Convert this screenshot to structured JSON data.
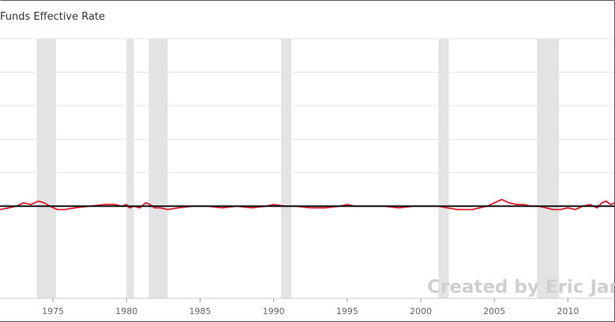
{
  "colors": {
    "background": "#ffffff",
    "gridline": "#e6e6e6",
    "recession_band": "#e3e3e3",
    "series_line": "#d81e2c",
    "mean_line": "#111111",
    "frame": "#555555"
  },
  "chart_data": {
    "type": "line",
    "legend_text": "Funds Effective Rate",
    "watermark": "Created by Eric Janszen",
    "xlabel": "",
    "ylabel": "",
    "x_ticks": [
      "1975",
      "1980",
      "1985",
      "1990",
      "1995",
      "2000",
      "2005",
      "2010"
    ],
    "x_tick_values": [
      1975,
      1980,
      1985,
      1990,
      1995,
      2000,
      2005,
      2010
    ],
    "xlim": [
      1971.4,
      2013.2
    ],
    "ylim": [
      -0.55,
      1.0
    ],
    "y_gridlines": [
      0.0,
      0.2,
      0.4,
      0.6,
      0.8,
      1.0
    ],
    "grid": true,
    "recession_bands": [
      [
        1973.9,
        1975.2
      ],
      [
        1980.0,
        1980.5
      ],
      [
        1981.5,
        1982.8
      ],
      [
        1990.5,
        1991.2
      ],
      [
        2001.2,
        2001.9
      ],
      [
        2007.9,
        2009.4
      ]
    ],
    "series": [
      {
        "type": "line",
        "x": [
          1971.4,
          1972.0,
          1972.5,
          1973.0,
          1973.5,
          1974.0,
          1974.4,
          1974.8,
          1975.3,
          1975.8,
          1976.5,
          1977.5,
          1978.5,
          1979.2,
          1979.7,
          1980.0,
          1980.2,
          1980.5,
          1980.9,
          1981.3,
          1981.6,
          1981.9,
          1982.3,
          1982.8,
          1983.5,
          1984.5,
          1985.5,
          1986.5,
          1987.5,
          1988.5,
          1989.5,
          1990.0,
          1990.8,
          1991.5,
          1992.5,
          1993.5,
          1994.5,
          1995.0,
          1995.5,
          1996.5,
          1997.5,
          1998.5,
          1999.5,
          2000.5,
          2001.2,
          2001.8,
          2002.5,
          2003.5,
          2004.0,
          2004.5,
          2005.0,
          2005.5,
          2006.0,
          2006.5,
          2007.0,
          2007.5,
          2008.0,
          2008.5,
          2009.0,
          2009.5,
          2010.0,
          2010.5,
          2011.0,
          2011.5,
          2012.0,
          2012.3,
          2012.6,
          2012.9,
          2013.2
        ],
        "y": [
          -0.02,
          -0.01,
          0.0,
          0.02,
          0.01,
          0.03,
          0.02,
          0.0,
          -0.02,
          -0.02,
          -0.01,
          0.0,
          0.01,
          0.01,
          0.0,
          0.01,
          -0.01,
          0.0,
          -0.01,
          0.02,
          0.01,
          -0.01,
          -0.01,
          -0.02,
          -0.01,
          0.0,
          0.0,
          -0.01,
          0.0,
          -0.01,
          0.0,
          0.01,
          0.0,
          0.0,
          -0.01,
          -0.01,
          0.0,
          0.01,
          0.0,
          0.0,
          0.0,
          -0.01,
          0.0,
          0.0,
          0.0,
          -0.01,
          -0.02,
          -0.02,
          -0.01,
          0.0,
          0.02,
          0.04,
          0.02,
          0.01,
          0.01,
          0.0,
          0.0,
          -0.01,
          -0.02,
          -0.02,
          -0.01,
          -0.02,
          0.0,
          0.01,
          -0.01,
          0.02,
          0.03,
          0.01,
          0.02
        ]
      },
      {
        "type": "line",
        "x": [
          1971.4,
          2013.2
        ],
        "y": [
          0.0,
          0.0
        ]
      }
    ]
  }
}
